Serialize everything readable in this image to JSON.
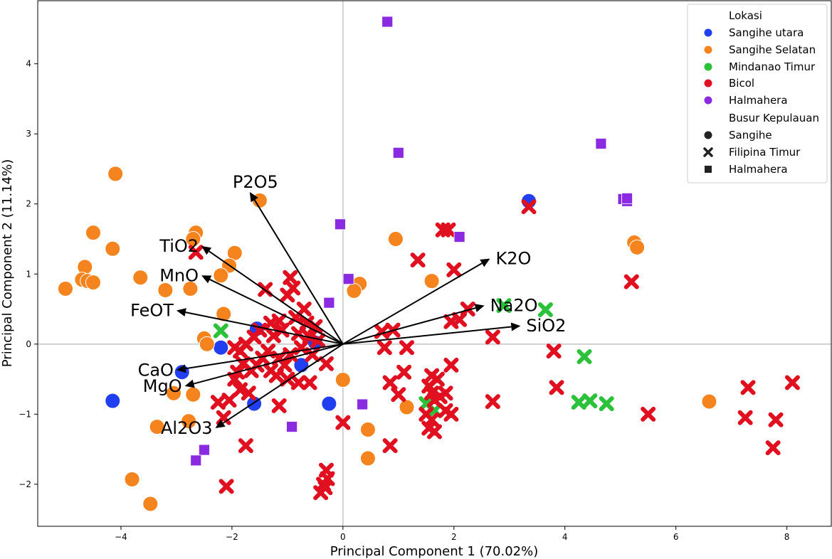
{
  "chart_data": {
    "type": "scatter",
    "xlabel": "Principal Component 1 (70.02%)",
    "ylabel": "Principal Component 2 (11.14%)",
    "xlim": [
      -5.5,
      8.8
    ],
    "ylim": [
      -2.6,
      4.9
    ],
    "xticks": [
      -4,
      -2,
      0,
      2,
      4,
      6,
      8
    ],
    "yticks": [
      -2,
      -1,
      0,
      1,
      2,
      3,
      4
    ],
    "zero_lines": true,
    "grid": false,
    "legend": {
      "position": "top-right",
      "hue_title": "Lokasi",
      "hue_entries": [
        {
          "label": "Sangihe utara",
          "color": "#1f3ff0"
        },
        {
          "label": "Sangihe Selatan",
          "color": "#f5841f"
        },
        {
          "label": "Mindanao Timur",
          "color": "#2cc13a"
        },
        {
          "label": "Bicol",
          "color": "#e01020"
        },
        {
          "label": "Halmahera",
          "color": "#8a2be2"
        }
      ],
      "style_title": "Busur Kepulauan",
      "style_entries": [
        {
          "label": "Sangihe",
          "marker": "circle"
        },
        {
          "label": "Filipina Timur",
          "marker": "x"
        },
        {
          "label": "Halmahera",
          "marker": "square"
        }
      ]
    },
    "series": [
      {
        "name": "Sangihe utara",
        "marker": "circle",
        "color": "#1f3ff0",
        "points": [
          [
            -4.15,
            -0.81
          ],
          [
            -2.9,
            -0.4
          ],
          [
            -2.2,
            -0.05
          ],
          [
            -1.55,
            0.22
          ],
          [
            -1.6,
            -0.85
          ],
          [
            -0.75,
            -0.3
          ],
          [
            -0.25,
            -0.85
          ],
          [
            -0.5,
            0.02
          ],
          [
            3.35,
            2.04
          ]
        ]
      },
      {
        "name": "Sangihe Selatan",
        "marker": "circle",
        "color": "#f5841f",
        "points": [
          [
            -4.1,
            2.43
          ],
          [
            -4.5,
            1.59
          ],
          [
            -4.15,
            1.36
          ],
          [
            -4.65,
            1.1
          ],
          [
            -4.7,
            0.92
          ],
          [
            -4.6,
            0.9
          ],
          [
            -4.5,
            0.88
          ],
          [
            -5.0,
            0.79
          ],
          [
            -3.65,
            0.95
          ],
          [
            -3.2,
            0.77
          ],
          [
            -2.75,
            0.79
          ],
          [
            -2.65,
            1.59
          ],
          [
            -2.7,
            1.5
          ],
          [
            -1.95,
            1.3
          ],
          [
            -2.05,
            1.12
          ],
          [
            -2.2,
            0.98
          ],
          [
            -2.15,
            0.43
          ],
          [
            -2.5,
            0.08
          ],
          [
            -2.45,
            0.0
          ],
          [
            -1.5,
            2.05
          ],
          [
            -2.7,
            -0.72
          ],
          [
            -3.05,
            -0.7
          ],
          [
            -2.78,
            -1.1
          ],
          [
            -3.35,
            -1.18
          ],
          [
            -3.8,
            -1.93
          ],
          [
            -3.47,
            -2.28
          ],
          [
            0.3,
            0.86
          ],
          [
            0.2,
            0.76
          ],
          [
            0.95,
            1.5
          ],
          [
            1.6,
            0.9
          ],
          [
            0.0,
            -0.51
          ],
          [
            1.15,
            -0.9
          ],
          [
            0.45,
            -1.22
          ],
          [
            0.45,
            -1.63
          ],
          [
            5.25,
            1.45
          ],
          [
            5.3,
            1.38
          ],
          [
            6.6,
            -0.82
          ]
        ]
      },
      {
        "name": "Mindanao Timur",
        "marker": "x",
        "color": "#2cc13a",
        "points": [
          [
            -2.2,
            0.19
          ],
          [
            2.9,
            0.55
          ],
          [
            3.65,
            0.49
          ],
          [
            4.35,
            -0.18
          ],
          [
            4.25,
            -0.83
          ],
          [
            4.45,
            -0.81
          ],
          [
            4.75,
            -0.85
          ],
          [
            1.5,
            -0.85
          ],
          [
            1.65,
            -0.95
          ]
        ]
      },
      {
        "name": "Bicol",
        "marker": "x",
        "color": "#e01020",
        "points": [
          [
            -2.65,
            1.31
          ],
          [
            -1.4,
            0.78
          ],
          [
            -0.95,
            0.95
          ],
          [
            -0.9,
            0.8
          ],
          [
            -1.0,
            0.7
          ],
          [
            -0.7,
            0.5
          ],
          [
            -0.85,
            0.38
          ],
          [
            -1.3,
            0.3
          ],
          [
            -1.15,
            0.33
          ],
          [
            -1.5,
            0.2
          ],
          [
            -1.6,
            0.1
          ],
          [
            -1.75,
            0.0
          ],
          [
            -1.85,
            -0.1
          ],
          [
            -1.95,
            -0.05
          ],
          [
            -1.25,
            0.12
          ],
          [
            -1.1,
            0.2
          ],
          [
            -1.35,
            -0.1
          ],
          [
            -1.45,
            -0.2
          ],
          [
            -1.55,
            -0.3
          ],
          [
            -1.65,
            -0.38
          ],
          [
            -1.8,
            -0.28
          ],
          [
            -1.9,
            -0.4
          ],
          [
            -1.95,
            -0.5
          ],
          [
            -1.3,
            -0.38
          ],
          [
            -1.2,
            -0.45
          ],
          [
            -1.05,
            -0.3
          ],
          [
            -1.15,
            -0.2
          ],
          [
            -0.95,
            -0.15
          ],
          [
            -0.8,
            0.15
          ],
          [
            -0.6,
            0.1
          ],
          [
            -0.5,
            0.25
          ],
          [
            -0.65,
            0.3
          ],
          [
            -0.75,
            -0.05
          ],
          [
            -0.55,
            -0.15
          ],
          [
            -0.45,
            0.05
          ],
          [
            -0.3,
            -0.28
          ],
          [
            -1.0,
            -0.5
          ],
          [
            -0.8,
            -0.55
          ],
          [
            -0.6,
            -0.55
          ],
          [
            -1.7,
            -0.7
          ],
          [
            -1.85,
            -0.65
          ],
          [
            -2.25,
            -0.83
          ],
          [
            -2.05,
            -0.8
          ],
          [
            -2.15,
            -1.05
          ],
          [
            -1.15,
            -0.88
          ],
          [
            -1.75,
            -1.45
          ],
          [
            -2.1,
            -2.03
          ],
          [
            0.0,
            -1.12
          ],
          [
            -0.3,
            -1.8
          ],
          [
            -0.28,
            -1.92
          ],
          [
            -0.35,
            -2.0
          ],
          [
            -0.4,
            -2.12
          ],
          [
            -0.32,
            -2.05
          ],
          [
            0.7,
            0.18
          ],
          [
            0.9,
            0.2
          ],
          [
            1.15,
            -0.05
          ],
          [
            0.75,
            -0.05
          ],
          [
            0.85,
            -0.55
          ],
          [
            1.0,
            -0.72
          ],
          [
            1.1,
            -0.4
          ],
          [
            1.35,
            1.2
          ],
          [
            1.8,
            1.63
          ],
          [
            1.9,
            1.63
          ],
          [
            2.0,
            1.06
          ],
          [
            1.95,
            0.32
          ],
          [
            2.1,
            0.35
          ],
          [
            2.25,
            0.5
          ],
          [
            1.95,
            -0.3
          ],
          [
            1.6,
            -0.45
          ],
          [
            1.7,
            -0.5
          ],
          [
            1.55,
            -0.6
          ],
          [
            1.6,
            -0.7
          ],
          [
            1.65,
            -0.8
          ],
          [
            1.75,
            -0.75
          ],
          [
            1.85,
            -0.7
          ],
          [
            1.5,
            -1.0
          ],
          [
            1.6,
            -1.08
          ],
          [
            1.55,
            -1.2
          ],
          [
            1.65,
            -1.25
          ],
          [
            1.85,
            -0.95
          ],
          [
            1.95,
            -1.0
          ],
          [
            0.85,
            -1.45
          ],
          [
            2.7,
            0.1
          ],
          [
            2.7,
            -0.82
          ],
          [
            3.35,
            1.96
          ],
          [
            3.8,
            -0.1
          ],
          [
            3.85,
            -0.62
          ],
          [
            5.2,
            0.89
          ],
          [
            5.5,
            -1.0
          ],
          [
            7.3,
            -0.62
          ],
          [
            7.25,
            -1.05
          ],
          [
            7.8,
            -1.08
          ],
          [
            7.75,
            -1.48
          ],
          [
            8.1,
            -0.55
          ]
        ]
      },
      {
        "name": "Halmahera",
        "marker": "square",
        "color": "#8a2be2",
        "points": [
          [
            0.8,
            4.6
          ],
          [
            1.0,
            2.73
          ],
          [
            4.65,
            2.86
          ],
          [
            5.05,
            2.07
          ],
          [
            5.12,
            2.04
          ],
          [
            5.12,
            2.08
          ],
          [
            -0.05,
            1.71
          ],
          [
            2.1,
            1.53
          ],
          [
            0.1,
            0.93
          ],
          [
            -0.25,
            0.59
          ],
          [
            0.35,
            -0.86
          ],
          [
            -0.92,
            -1.18
          ],
          [
            -2.5,
            -1.51
          ],
          [
            -2.65,
            -1.66
          ]
        ]
      }
    ],
    "loadings": [
      {
        "label": "P2O5",
        "x": -1.68,
        "y": 2.17
      },
      {
        "label": "TiO2",
        "x": -2.55,
        "y": 1.4
      },
      {
        "label": "MnO",
        "x": -2.55,
        "y": 0.98
      },
      {
        "label": "FeOT",
        "x": -3.0,
        "y": 0.48
      },
      {
        "label": "CaO",
        "x": -3.0,
        "y": -0.37
      },
      {
        "label": "MgO",
        "x": -2.85,
        "y": -0.6
      },
      {
        "label": "Al2O3",
        "x": -2.3,
        "y": -1.2
      },
      {
        "label": "K2O",
        "x": 2.65,
        "y": 1.22
      },
      {
        "label": "Na2O",
        "x": 2.55,
        "y": 0.55
      },
      {
        "label": "SiO2",
        "x": 3.2,
        "y": 0.26
      }
    ]
  }
}
